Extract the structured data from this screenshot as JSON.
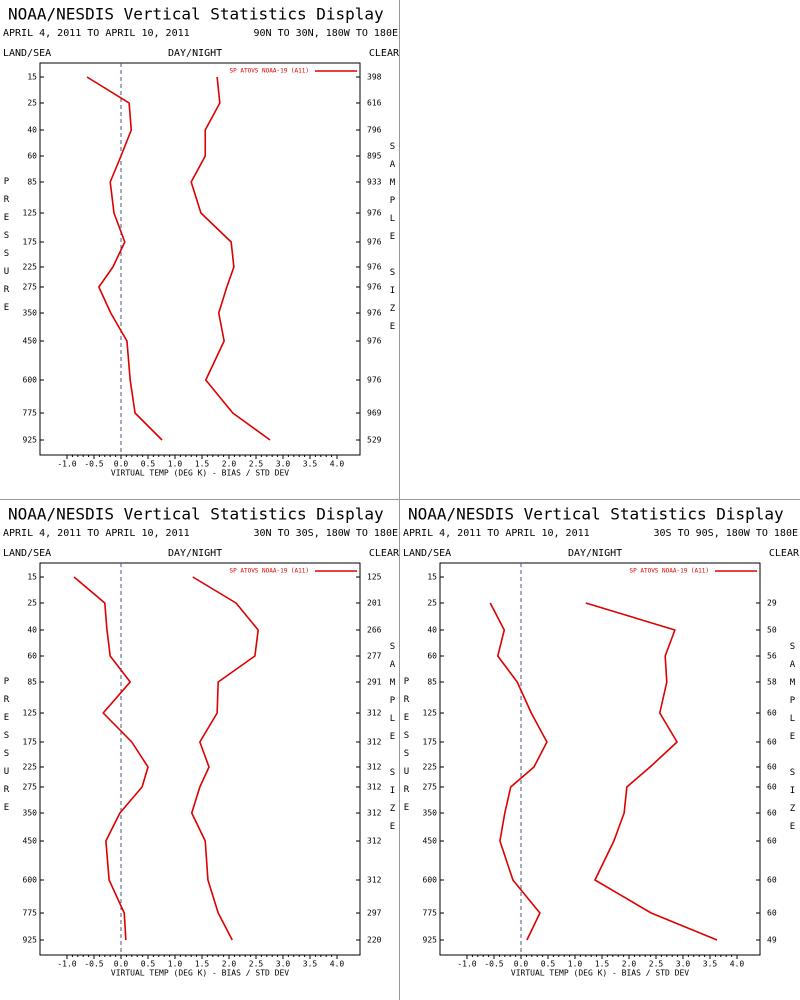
{
  "chart_data": [
    {
      "type": "line",
      "title": "NOAA/NESDIS Vertical Statistics Display",
      "date_range": "APRIL 4, 2011 TO APRIL 10, 2011",
      "region": "90N TO 30N, 180W TO 180E",
      "land_sea": "LAND/SEA",
      "day_night": "DAY/NIGHT",
      "clear": "CLEAR",
      "y_label": "PRESSURE",
      "sample_label": "SAMPLE SIZE",
      "x_label": "VIRTUAL TEMP (DEG K) - BIAS / STD DEV",
      "categories": [
        "15",
        "25",
        "40",
        "60",
        "85",
        "125",
        "175",
        "225",
        "275",
        "350",
        "450",
        "600",
        "775",
        "925"
      ],
      "sample_size": [
        398,
        616,
        796,
        895,
        933,
        976,
        976,
        976,
        976,
        976,
        976,
        976,
        969,
        529
      ],
      "series": [
        {
          "name": "SP ATOVS NOAA-19 (A11)",
          "color": "#dd0000",
          "bias": [
            -0.63,
            0.15,
            0.19,
            0.0,
            -0.2,
            -0.13,
            0.07,
            -0.15,
            -0.41,
            -0.19,
            0.11,
            0.17,
            0.26,
            0.76
          ],
          "std_dev": [
            1.78,
            1.83,
            1.56,
            1.56,
            1.3,
            1.48,
            2.04,
            2.09,
            1.96,
            1.81,
            1.91,
            1.57,
            2.07,
            2.76
          ]
        }
      ],
      "xlim": [
        -1.5,
        4.5
      ],
      "xticks": [
        {
          "value": -1,
          "label": "-1.0"
        },
        -0.5,
        {
          "value": 0,
          "label": "0.0"
        },
        0.5,
        {
          "value": 1,
          "label": "1.0"
        },
        1.5,
        {
          "value": 2,
          "label": "2.0"
        },
        2.5,
        {
          "value": 3,
          "label": "3.0"
        },
        3.5,
        {
          "value": 4,
          "label": "4.0"
        }
      ]
    },
    {
      "type": "line",
      "title": "NOAA/NESDIS Vertical Statistics Display",
      "date_range": "APRIL 4, 2011 TO APRIL 10, 2011",
      "region": "30N TO 30S, 180W TO 180E",
      "land_sea": "LAND/SEA",
      "day_night": "DAY/NIGHT",
      "clear": "CLEAR",
      "y_label": "PRESSURE",
      "sample_label": "SAMPLE SIZE",
      "x_label": "VIRTUAL TEMP (DEG K) - BIAS / STD DEV",
      "categories": [
        "15",
        "25",
        "40",
        "60",
        "85",
        "125",
        "175",
        "225",
        "275",
        "350",
        "450",
        "600",
        "775",
        "925"
      ],
      "sample_size": [
        125,
        201,
        266,
        277,
        291,
        312,
        312,
        312,
        312,
        312,
        312,
        312,
        297,
        220
      ],
      "series": [
        {
          "name": "SP ATOVS NOAA-19 (A11)",
          "color": "#dd0000",
          "bias": [
            -0.87,
            -0.3,
            -0.26,
            -0.2,
            0.17,
            -0.33,
            0.2,
            0.5,
            0.39,
            -0.02,
            -0.28,
            -0.22,
            0.06,
            0.09
          ],
          "std_dev": [
            1.33,
            2.13,
            2.54,
            2.48,
            1.8,
            1.78,
            1.46,
            1.63,
            1.46,
            1.31,
            1.56,
            1.61,
            1.8,
            2.06
          ]
        }
      ],
      "xlim": [
        -1.5,
        4.5
      ],
      "xticks": [
        {
          "value": -1,
          "label": "-1.0"
        },
        -0.5,
        {
          "value": 0,
          "label": "0.0"
        },
        0.5,
        {
          "value": 1,
          "label": "1.0"
        },
        1.5,
        {
          "value": 2,
          "label": "2.0"
        },
        2.5,
        {
          "value": 3,
          "label": "3.0"
        },
        3.5,
        {
          "value": 4,
          "label": "4.0"
        }
      ]
    },
    {
      "type": "line",
      "title": "NOAA/NESDIS Vertical Statistics Display",
      "date_range": "APRIL 4, 2011 TO APRIL 10, 2011",
      "region": "30S TO 90S, 180W TO 180E",
      "land_sea": "LAND/SEA",
      "day_night": "DAY/NIGHT",
      "clear": "CLEAR",
      "y_label": "PRESSURE",
      "sample_label": "SAMPLE SIZE",
      "x_label": "VIRTUAL TEMP (DEG K) - BIAS / STD DEV",
      "categories": [
        "15",
        "25",
        "40",
        "60",
        "85",
        "125",
        "175",
        "225",
        "275",
        "350",
        "450",
        "600",
        "775",
        "925"
      ],
      "sample_size": [
        null,
        29,
        50,
        56,
        58,
        60,
        60,
        60,
        60,
        60,
        60,
        60,
        60,
        49
      ],
      "series": [
        {
          "name": "SP ATOVS NOAA-19 (A11)",
          "color": "#dd0000",
          "bias": [
            null,
            -0.57,
            -0.31,
            -0.43,
            -0.07,
            0.19,
            0.48,
            0.24,
            -0.19,
            -0.3,
            -0.39,
            -0.15,
            0.35,
            0.11
          ],
          "std_dev": [
            null,
            1.2,
            2.85,
            2.67,
            2.7,
            2.57,
            2.89,
            2.39,
            1.96,
            1.91,
            1.72,
            1.37,
            2.41,
            3.63
          ]
        }
      ],
      "xlim": [
        -1.5,
        4.5
      ],
      "xticks": [
        {
          "value": -1,
          "label": "-1.0"
        },
        -0.5,
        {
          "value": 0,
          "label": "0.0"
        },
        0.5,
        {
          "value": 1,
          "label": "1.0"
        },
        1.5,
        {
          "value": 2,
          "label": "2.0"
        },
        2.5,
        {
          "value": 3,
          "label": "3.0"
        },
        3.5,
        {
          "value": 4,
          "label": "4.0"
        }
      ]
    }
  ]
}
